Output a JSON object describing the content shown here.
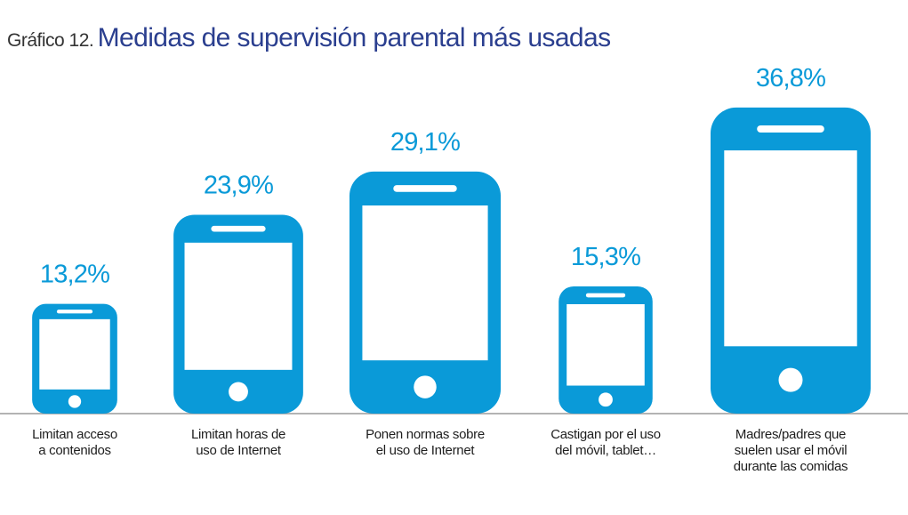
{
  "title": {
    "prefix": "Gráfico 12.",
    "main": "Medidas de supervisión parental más usadas"
  },
  "colors": {
    "accent": "#0a9ad8",
    "title": "#2b3f8f",
    "baseline": "#9a9a9a"
  },
  "chart_data": {
    "type": "bar",
    "title": "Medidas de supervisión parental más usadas",
    "categories": [
      "Limitan acceso a contenidos",
      "Limitan horas de uso de Internet",
      "Ponen normas sobre el uso de Internet",
      "Castigan por el uso del móvil, tablet…",
      "Madres/padres que suelen usar el móvil durante las comidas"
    ],
    "values": [
      13.2,
      23.9,
      29.1,
      15.3,
      36.8
    ],
    "value_labels": [
      "13,2%",
      "23,9%",
      "29,1%",
      "15,3%",
      "36,8%"
    ],
    "unit": "%",
    "mark": "smartphone-icon",
    "grid": false,
    "legend": "none"
  },
  "category_lines": [
    [
      "Limitan acceso",
      "a contenidos"
    ],
    [
      "Limitan horas de",
      "uso de Internet"
    ],
    [
      "Ponen normas sobre",
      "el uso de Internet"
    ],
    [
      "Castigan por el uso",
      "del móvil, tablet…"
    ],
    [
      "Madres/padres que",
      "suelen usar el móvil",
      "durante las comidas"
    ]
  ]
}
